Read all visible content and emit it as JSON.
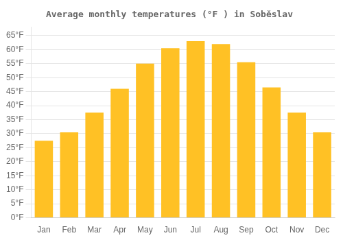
{
  "chart_data": {
    "type": "bar",
    "title": "Average monthly temperatures (°F ) in Soběslav",
    "categories": [
      "Jan",
      "Feb",
      "Mar",
      "Apr",
      "May",
      "Jun",
      "Jul",
      "Aug",
      "Sep",
      "Oct",
      "Nov",
      "Dec"
    ],
    "values": [
      27.5,
      30.5,
      37.5,
      46.0,
      55.0,
      60.5,
      63.0,
      62.0,
      55.5,
      46.5,
      37.5,
      30.5
    ],
    "color": "#FFC125",
    "ylim": [
      0,
      68
    ],
    "yticks": [
      {
        "value": 0,
        "label": "0°F"
      },
      {
        "value": 5,
        "label": "5°F"
      },
      {
        "value": 10,
        "label": "10°F"
      },
      {
        "value": 15,
        "label": "15°F"
      },
      {
        "value": 20,
        "label": "20°F"
      },
      {
        "value": 25,
        "label": "25°F"
      },
      {
        "value": 30,
        "label": "30°F"
      },
      {
        "value": 35,
        "label": "35°F"
      },
      {
        "value": 40,
        "label": "40°F"
      },
      {
        "value": 45,
        "label": "45°F"
      },
      {
        "value": 50,
        "label": "50°F"
      },
      {
        "value": 55,
        "label": "55°F"
      },
      {
        "value": 60,
        "label": "60°F"
      },
      {
        "value": 65,
        "label": "65°F"
      }
    ],
    "grid": true
  }
}
